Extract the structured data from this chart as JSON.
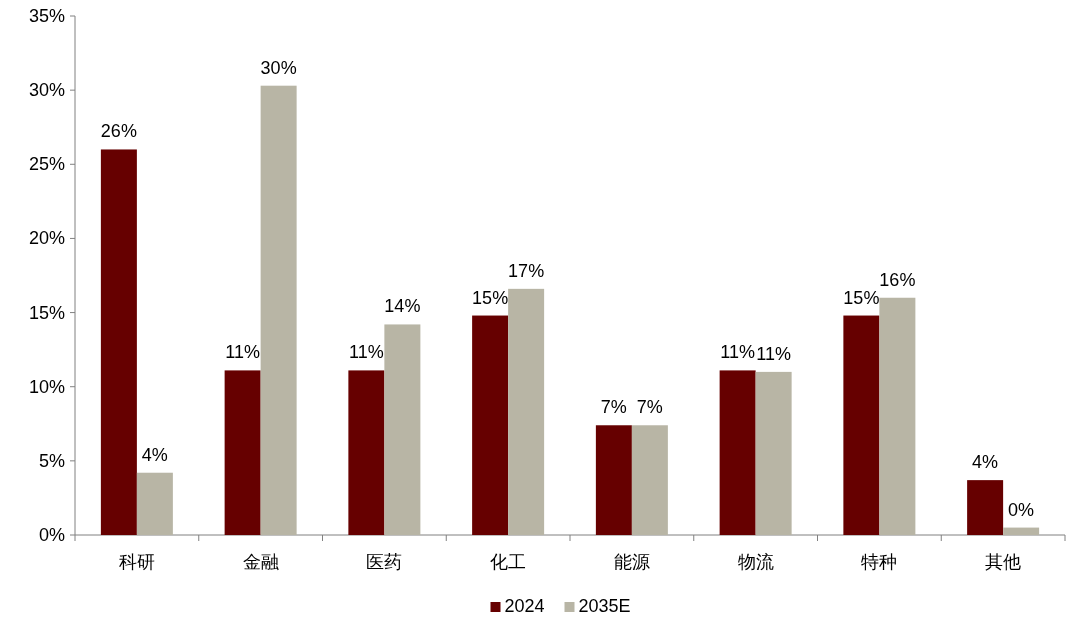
{
  "chart_data": {
    "type": "bar",
    "categories": [
      "科研",
      "金融",
      "医药",
      "化工",
      "能源",
      "物流",
      "特种",
      "其他"
    ],
    "series": [
      {
        "name": "2024",
        "color": "#660000",
        "values": [
          26.0,
          11.1,
          11.1,
          14.8,
          7.4,
          11.1,
          14.8,
          3.7
        ],
        "value_labels": [
          "26%",
          "11%",
          "11%",
          "15%",
          "7%",
          "11%",
          "15%",
          "4%"
        ]
      },
      {
        "name": "2035E",
        "color": "#b8b5a5",
        "values": [
          4.2,
          30.3,
          14.2,
          16.6,
          7.4,
          11.0,
          16.0,
          0.5
        ],
        "value_labels": [
          "4%",
          "30%",
          "14%",
          "17%",
          "7%",
          "11%",
          "16%",
          "0%"
        ]
      }
    ],
    "ylim": [
      0,
      35
    ],
    "yticks": [
      {
        "value": 0,
        "label": "0%"
      },
      {
        "value": 5,
        "label": "5%"
      },
      {
        "value": 10,
        "label": "10%"
      },
      {
        "value": 15,
        "label": "15%"
      },
      {
        "value": 20,
        "label": "20%"
      },
      {
        "value": 25,
        "label": "25%"
      },
      {
        "value": 30,
        "label": "30%"
      },
      {
        "value": 35,
        "label": "35%"
      }
    ],
    "grid": false,
    "legend": "bottom"
  }
}
